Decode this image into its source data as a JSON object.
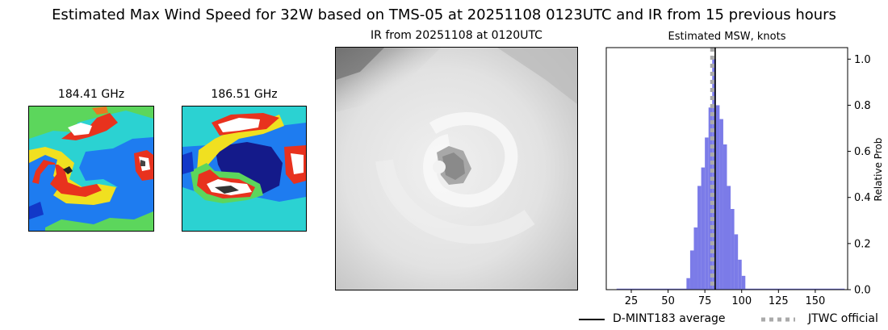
{
  "figure": {
    "title": "Estimated Max Wind Speed for 32W based on TMS-05 at 20251108 0123UTC and IR from 15 previous hours"
  },
  "panels": {
    "mw1_title": "184.41 GHz",
    "mw2_title": "186.51 GHz",
    "ir_title": "IR from 20251108 at 0120UTC"
  },
  "legend": {
    "items": [
      {
        "label": "D-MINT183 average",
        "style": "solid",
        "color": "#000000"
      },
      {
        "label": "JTWC official",
        "style": "dotted",
        "color": "#aaaaaa"
      }
    ],
    "placement": "bottom-right"
  },
  "chart_data": {
    "type": "bar",
    "title": "Estimated MSW, knots",
    "xlabel": "",
    "ylabel": "Relative Prob",
    "xlim": [
      8,
      172
    ],
    "ylim": [
      0,
      1.05
    ],
    "x_ticks": [
      25,
      50,
      75,
      100,
      125,
      150
    ],
    "y_ticks": [
      0.0,
      0.2,
      0.4,
      0.6,
      0.8,
      1.0
    ],
    "y_tick_labels": [
      "0.0",
      "0.2",
      "0.4",
      "0.6",
      "0.8",
      "1.0"
    ],
    "y_axis_side": "right",
    "bin_width": 2.5,
    "bin_centers": [
      63.75,
      66.25,
      68.75,
      71.25,
      73.75,
      76.25,
      78.75,
      81.25,
      83.75,
      86.25,
      88.75,
      91.25,
      93.75,
      96.25,
      98.75,
      101.25
    ],
    "values": [
      0.05,
      0.17,
      0.27,
      0.45,
      0.53,
      0.66,
      0.79,
      1.0,
      0.8,
      0.74,
      0.63,
      0.45,
      0.35,
      0.24,
      0.13,
      0.06
    ],
    "baseline_range": [
      15,
      170
    ],
    "bar_color": "#7b7be8",
    "dmint_average": 82,
    "jtwc_official": 80
  }
}
